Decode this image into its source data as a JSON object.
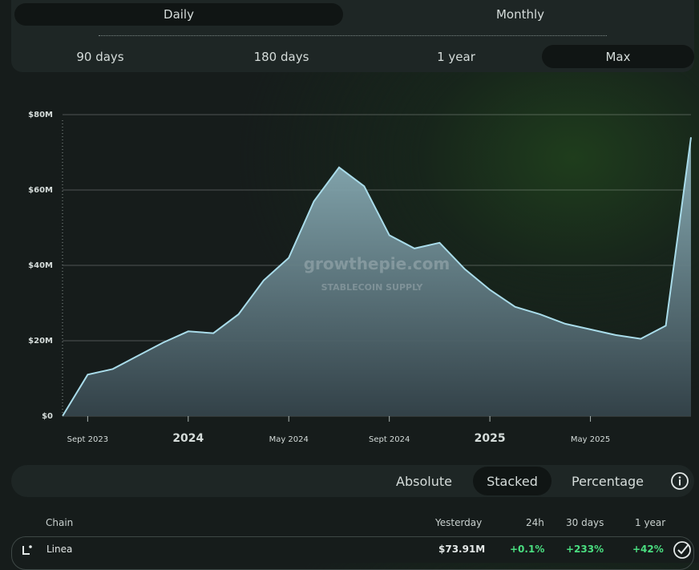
{
  "tabs": {
    "items": [
      "Daily",
      "Monthly"
    ],
    "active": "Daily"
  },
  "ranges": {
    "items": [
      "90 days",
      "180 days",
      "1 year",
      "Max"
    ],
    "active": "Max"
  },
  "watermark": {
    "brand": "growthepie.com",
    "caption": "STABLECOIN SUPPLY"
  },
  "chart_data": {
    "type": "area",
    "color": "#a9dcea",
    "x": [
      "2023-08",
      "2023-09",
      "2023-10",
      "2023-11",
      "2023-12",
      "2024-01",
      "2024-02",
      "2024-03",
      "2024-04",
      "2024-05",
      "2024-06",
      "2024-07",
      "2024-08",
      "2024-09",
      "2024-10",
      "2024-11",
      "2024-12",
      "2025-01",
      "2025-02",
      "2025-03",
      "2025-04",
      "2025-05",
      "2025-06",
      "2025-07",
      "2025-08",
      "2025-09"
    ],
    "values": [
      0,
      11000000,
      12500000,
      16000000,
      19500000,
      22500000,
      22000000,
      27000000,
      36000000,
      42000000,
      57000000,
      66000000,
      61000000,
      48000000,
      44500000,
      46000000,
      39000000,
      33500000,
      29000000,
      27000000,
      24500000,
      23000000,
      21500000,
      20500000,
      24000000,
      74000000
    ],
    "xlim": [
      "2023-08",
      "2025-09"
    ],
    "xticks": [
      {
        "value": "2023-09",
        "label": "Sept 2023"
      },
      {
        "value": "2024-01",
        "label": "2024"
      },
      {
        "value": "2024-05",
        "label": "May 2024"
      },
      {
        "value": "2024-09",
        "label": "Sept 2024"
      },
      {
        "value": "2025-01",
        "label": "2025"
      },
      {
        "value": "2025-05",
        "label": "May 2025"
      }
    ],
    "ylim": [
      0,
      80000000
    ],
    "yticks": [
      {
        "value": 0,
        "label": "$0"
      },
      {
        "value": 20000000,
        "label": "$20M"
      },
      {
        "value": 40000000,
        "label": "$40M"
      },
      {
        "value": 60000000,
        "label": "$60M"
      },
      {
        "value": 80000000,
        "label": "$80M"
      }
    ],
    "grid": true
  },
  "modes": {
    "items": [
      "Absolute",
      "Stacked",
      "Percentage"
    ],
    "active": "Stacked"
  },
  "table": {
    "columns": [
      "Chain",
      "Yesterday",
      "24h",
      "30 days",
      "1 year"
    ],
    "rows": [
      [
        "Linea",
        "$73.91M",
        "+0.1%",
        "+233%",
        "+42%"
      ]
    ]
  }
}
